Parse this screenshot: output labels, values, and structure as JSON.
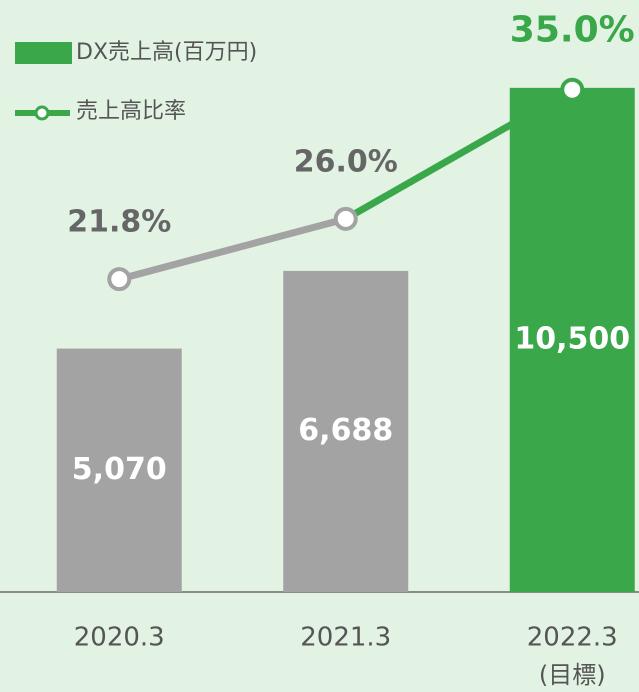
{
  "chart_data": {
    "type": "bar",
    "categories": [
      "2020.3",
      "2021.3",
      "2022.3"
    ],
    "category_note": "(目標)",
    "ylim": [
      0,
      12330
    ],
    "y2lim": [
      0,
      41.25
    ],
    "series": [
      {
        "name": "DX売上高(百万円)",
        "type": "bar",
        "color": "#3aa84a",
        "colors": [
          "#a3a3a3",
          "#a3a3a3",
          "#3aa84a"
        ],
        "values": [
          5070,
          6688,
          10500
        ],
        "value_labels": [
          "5,070",
          "6,688",
          "10,500"
        ]
      },
      {
        "name": "売上高比率",
        "type": "line",
        "axis": "y2",
        "color": "#3aa84a",
        "colors": [
          "#a3a3a3",
          "#a3a3a3",
          "#3aa84a"
        ],
        "values": [
          21.8,
          26.0,
          35.0
        ],
        "value_labels": [
          "21.8%",
          "26.0%",
          "35.0%"
        ]
      }
    ]
  }
}
